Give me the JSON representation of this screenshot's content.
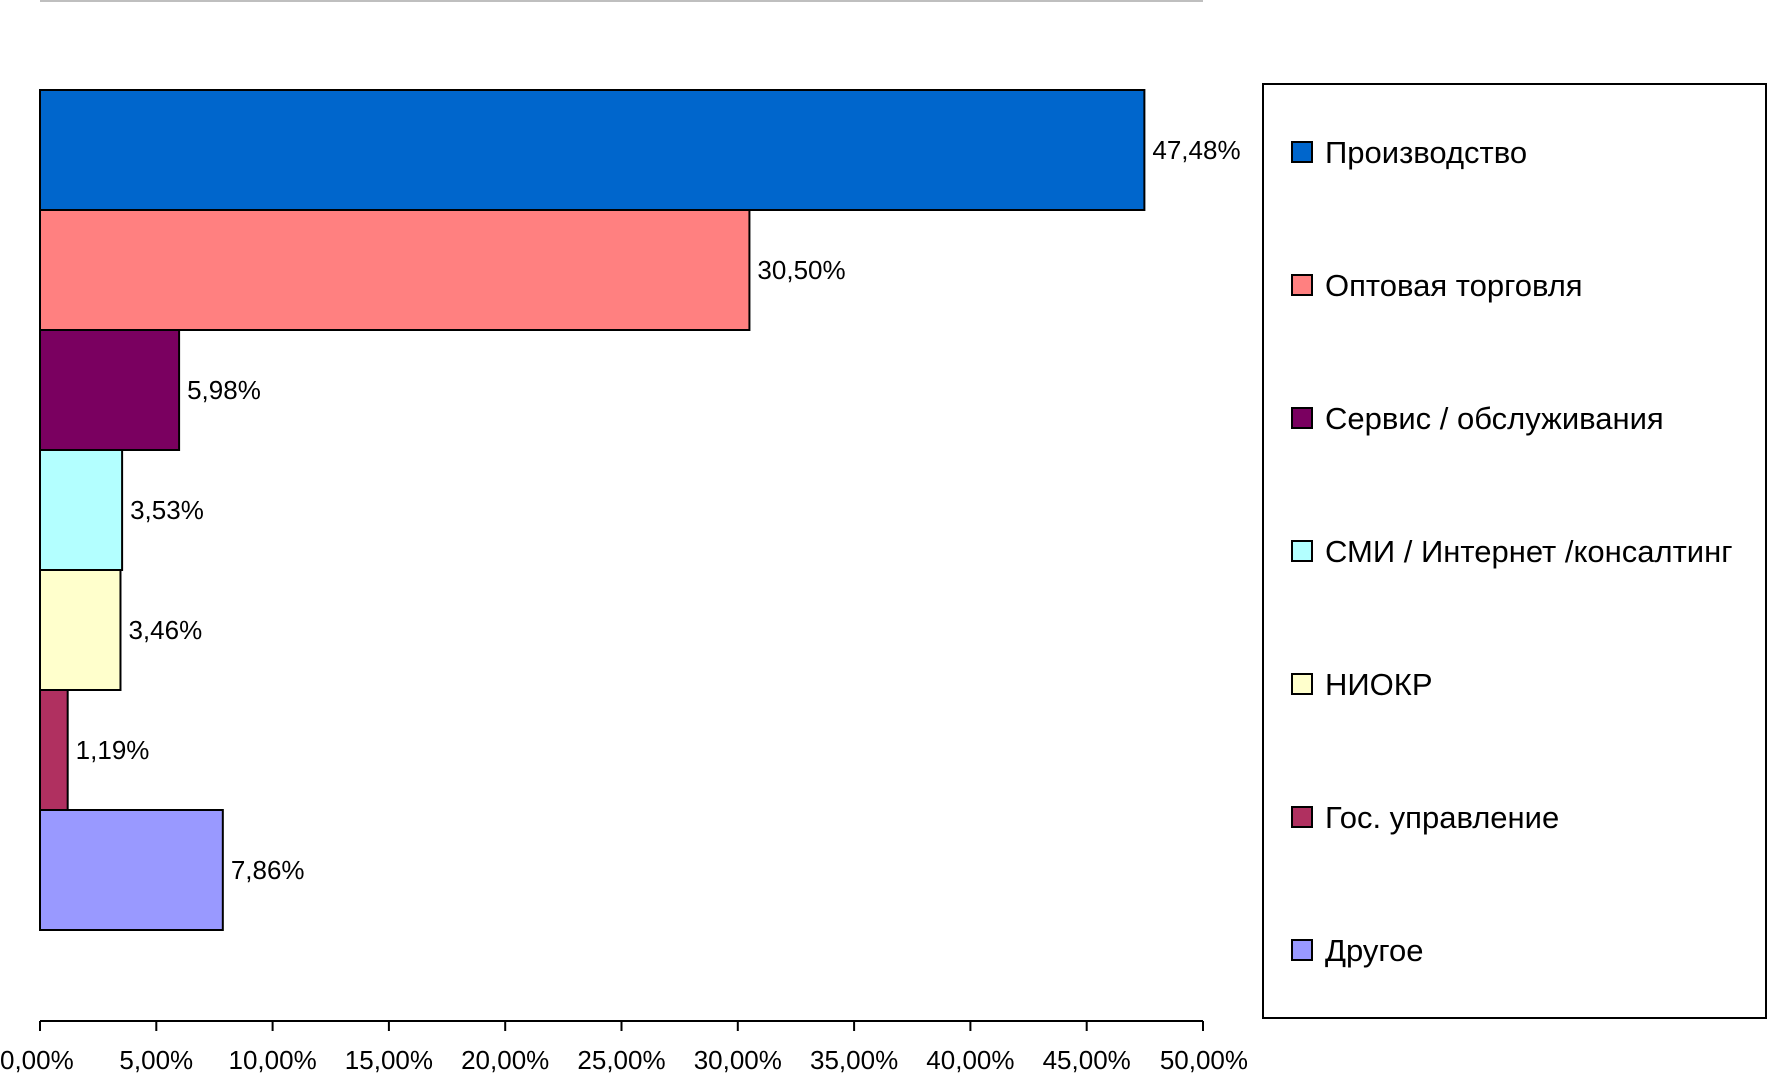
{
  "chart_data": {
    "type": "bar",
    "orientation": "horizontal",
    "categories": [
      "Производство",
      "Оптовая торговля",
      "Сервис / обслуживания",
      "СМИ / Интернет /консалтинг",
      "НИОКР",
      "Гос. управление",
      "Другое"
    ],
    "values": [
      47.48,
      30.5,
      5.98,
      3.53,
      3.46,
      1.19,
      7.86
    ],
    "data_labels": [
      "47,48%",
      "30,50%",
      "5,98%",
      "3,53%",
      "3,46%",
      "1,19%",
      "7,86%"
    ],
    "colors": [
      "#0066CC",
      "#FF8080",
      "#7A0060",
      "#B3FFFF",
      "#FFFFCC",
      "#B03060",
      "#9999FF"
    ],
    "x_ticks": [
      0,
      5,
      10,
      15,
      20,
      25,
      30,
      35,
      40,
      45,
      50
    ],
    "x_tick_labels": [
      "0,00%",
      "5,00%",
      "10,00%",
      "15,00%",
      "20,00%",
      "25,00%",
      "30,00%",
      "35,00%",
      "40,00%",
      "45,00%",
      "50,00%"
    ],
    "xlim": [
      0,
      50
    ],
    "grid": false,
    "legend_position": "right"
  }
}
